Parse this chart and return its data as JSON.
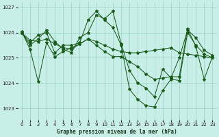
{
  "title": "Graphe pression niveau de la mer (hPa)",
  "bg_color": "#c8eee8",
  "grid_color": "#a0d4c8",
  "line_color": "#1a5c1a",
  "marker": "*",
  "marker_size": 3.0,
  "linewidth": 0.75,
  "xlim": [
    -0.5,
    23.5
  ],
  "ylim": [
    1022.55,
    1027.2
  ],
  "yticks": [
    1023,
    1024,
    1025,
    1026,
    1027
  ],
  "xticks": [
    0,
    1,
    2,
    3,
    4,
    5,
    6,
    7,
    8,
    9,
    10,
    11,
    12,
    13,
    14,
    15,
    16,
    17,
    18,
    19,
    20,
    21,
    22,
    23
  ],
  "series": [
    [
      1026.0,
      1025.6,
      1025.9,
      1026.0,
      1025.2,
      1025.5,
      1025.5,
      1025.6,
      1026.5,
      1026.85,
      1026.5,
      1026.2,
      1025.5,
      1023.75,
      1023.35,
      1023.1,
      1023.05,
      1023.7,
      1024.15,
      1024.1,
      1026.0,
      1025.5,
      1025.15,
      1025.0
    ],
    [
      1026.0,
      1025.5,
      1025.75,
      1026.1,
      1025.65,
      1025.35,
      1025.2,
      1025.8,
      1026.0,
      1026.7,
      1026.55,
      1026.85,
      1025.55,
      1024.5,
      1024.0,
      1023.8,
      1023.45,
      1024.55,
      1024.2,
      1025.0,
      1026.1,
      1025.8,
      1025.3,
      1025.1
    ],
    [
      1026.0,
      1025.7,
      1025.65,
      1025.75,
      1025.55,
      1025.4,
      1025.35,
      1025.55,
      1025.75,
      1025.65,
      1025.5,
      1025.35,
      1025.25,
      1025.2,
      1025.2,
      1025.25,
      1025.3,
      1025.35,
      1025.4,
      1025.2,
      1025.15,
      1025.1,
      1025.05,
      1025.0
    ],
    [
      1026.05,
      1025.35,
      1024.05,
      1025.6,
      1025.05,
      1025.25,
      1025.4,
      1025.55,
      1025.75,
      1025.5,
      1025.25,
      1025.05,
      1025.05,
      1024.85,
      1024.65,
      1024.35,
      1024.15,
      1024.2,
      1024.25,
      1024.25,
      1026.15,
      1025.45,
      1024.15,
      1025.05
    ]
  ]
}
